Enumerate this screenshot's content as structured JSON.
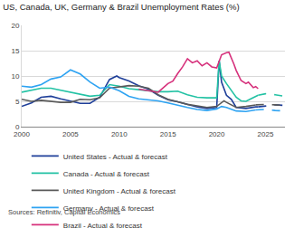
{
  "chart_data": {
    "type": "line",
    "title": "US, Canada, UK, Germany & Brazil Unemployment Rates (%)",
    "source": "Sources: Refinitiv, Capital Economics",
    "xlim": [
      2000,
      2027
    ],
    "xticks": [
      2000,
      2005,
      2010,
      2015,
      2020,
      2025
    ],
    "ylim": [
      0,
      20
    ],
    "yticks": [
      0,
      5,
      10,
      15,
      20
    ],
    "grid": true,
    "legend": "bottom",
    "series": [
      {
        "name": "United States - Actual & forecast",
        "color": "#1f3f99",
        "line_style": "solid",
        "x": [
          2000,
          2001,
          2002,
          2003,
          2004,
          2005,
          2006,
          2007,
          2008,
          2009,
          2009.75,
          2010,
          2011,
          2012,
          2013,
          2014,
          2015,
          2016,
          2017,
          2018,
          2019,
          2020,
          2020.25,
          2020.5,
          2021,
          2021.5,
          2022,
          2023,
          2024,
          2024.25
        ],
        "values": [
          4.0,
          4.7,
          5.8,
          6.0,
          5.5,
          5.1,
          4.6,
          4.6,
          5.8,
          9.3,
          10.0,
          9.7,
          9.0,
          8.1,
          7.4,
          6.2,
          5.3,
          4.9,
          4.4,
          3.9,
          3.6,
          3.8,
          13.0,
          8.8,
          6.2,
          5.4,
          3.8,
          3.6,
          3.9,
          3.9
        ]
      },
      {
        "name": "United States - Actual & forecast",
        "color": "#1f3f99",
        "line_style": "dash",
        "x": [
          2024.25,
          2025,
          2026,
          2027
        ],
        "values": [
          3.9,
          4.1,
          4.3,
          4.2
        ]
      },
      {
        "name": "Canada - Actual & forecast",
        "color": "#23c2a4",
        "line_style": "solid",
        "x": [
          2000,
          2001,
          2002,
          2003,
          2004,
          2005,
          2006,
          2007,
          2008,
          2009,
          2010,
          2011,
          2012,
          2013,
          2014,
          2015,
          2016,
          2017,
          2018,
          2019,
          2020,
          2020.25,
          2020.5,
          2021,
          2021.5,
          2022,
          2022.5,
          2023,
          2023.5,
          2024,
          2024.25
        ],
        "values": [
          6.8,
          7.2,
          7.6,
          7.6,
          7.2,
          6.8,
          6.3,
          6.0,
          6.2,
          8.3,
          8.0,
          7.5,
          7.3,
          7.1,
          6.9,
          6.9,
          7.0,
          6.3,
          5.8,
          5.7,
          5.7,
          13.0,
          10.0,
          8.5,
          7.2,
          5.8,
          5.1,
          5.0,
          5.5,
          6.0,
          6.2
        ]
      },
      {
        "name": "Canada - Actual & forecast",
        "color": "#23c2a4",
        "line_style": "dash",
        "x": [
          2024.25,
          2025,
          2026,
          2027
        ],
        "values": [
          6.2,
          6.5,
          6.3,
          6.0
        ]
      },
      {
        "name": "United Kingdom - Actual & forecast",
        "color": "#5a5a5a",
        "line_style": "solid",
        "x": [
          2000,
          2001,
          2002,
          2003,
          2004,
          2005,
          2006,
          2007,
          2008,
          2009,
          2010,
          2011,
          2012,
          2013,
          2014,
          2015,
          2016,
          2017,
          2018,
          2019,
          2020,
          2020.75,
          2021,
          2022,
          2023,
          2024
        ],
        "values": [
          5.4,
          5.0,
          5.2,
          5.0,
          4.8,
          4.8,
          5.4,
          5.3,
          5.7,
          7.6,
          7.9,
          8.1,
          8.0,
          7.6,
          6.3,
          5.4,
          4.9,
          4.4,
          4.1,
          3.8,
          4.0,
          5.1,
          4.8,
          3.8,
          4.0,
          4.3
        ]
      },
      {
        "name": "United Kingdom - Actual & forecast",
        "color": "#5a5a5a",
        "line_style": "dash",
        "x": [
          2024,
          2025,
          2026,
          2027
        ],
        "values": [
          4.3,
          4.4,
          4.3,
          4.2
        ]
      },
      {
        "name": "Germany - Actual & forecast",
        "color": "#2ea3f2",
        "line_style": "solid",
        "x": [
          2000,
          2001,
          2002,
          2003,
          2004,
          2005,
          2006,
          2007,
          2008,
          2009,
          2010,
          2011,
          2012,
          2013,
          2014,
          2015,
          2016,
          2017,
          2018,
          2019,
          2020,
          2020.5,
          2021,
          2022,
          2023,
          2024
        ],
        "values": [
          8.0,
          7.8,
          8.3,
          9.4,
          9.8,
          11.2,
          10.4,
          8.8,
          7.6,
          7.8,
          7.1,
          6.0,
          5.5,
          5.3,
          5.1,
          4.7,
          4.2,
          3.8,
          3.4,
          3.2,
          3.5,
          4.0,
          3.8,
          3.1,
          3.0,
          3.3
        ]
      },
      {
        "name": "Germany - Actual & forecast",
        "color": "#2ea3f2",
        "line_style": "dash",
        "x": [
          2024,
          2025,
          2026,
          2027
        ],
        "values": [
          3.3,
          3.4,
          3.2,
          3.1
        ]
      },
      {
        "name": "Brazil - Actual & forecast",
        "color": "#d6307b",
        "line_style": "solid",
        "x": [
          2012,
          2013,
          2014,
          2015,
          2015.5,
          2016,
          2016.5,
          2017,
          2017.5,
          2018,
          2018.5,
          2019,
          2019.5,
          2020,
          2020.5,
          2021,
          2021.25,
          2021.75,
          2022,
          2022.5,
          2023,
          2023.25,
          2023.75,
          2024,
          2024.25
        ],
        "values": [
          7.4,
          7.1,
          6.8,
          8.5,
          9.0,
          10.5,
          11.8,
          13.4,
          12.6,
          13.0,
          12.0,
          12.6,
          11.8,
          11.6,
          14.2,
          14.6,
          14.7,
          12.4,
          11.1,
          9.1,
          8.5,
          8.8,
          7.7,
          7.9,
          7.5
        ]
      }
    ]
  }
}
